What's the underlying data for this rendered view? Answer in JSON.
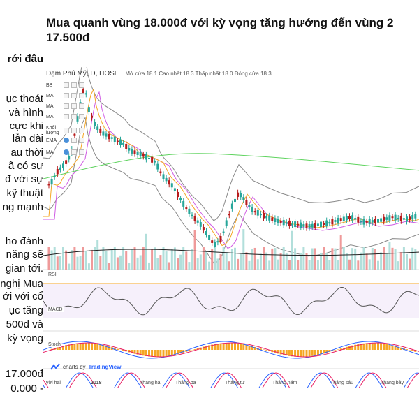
{
  "headline": {
    "line1": "Mua quanh vùng 18.000đ với kỳ vọng tăng hướng đến vùng 2",
    "line2": "17.500đ"
  },
  "side_text": [
    {
      "text": "rới đâu",
      "bold": true
    },
    {
      "text": "ục thoát"
    },
    {
      "text": "và hình"
    },
    {
      "text": "cực khi"
    },
    {
      "text": "lẫn dài"
    },
    {
      "text": "au thời"
    },
    {
      "text": "ã có sự"
    },
    {
      "text": "đ với sự"
    },
    {
      "text": "kỹ thuật"
    },
    {
      "text": "ng mạnh"
    },
    {
      "text": "ho đánh"
    },
    {
      "text": "năng sẽ"
    },
    {
      "text": "gian tới."
    },
    {
      "text": "nghị Mua"
    },
    {
      "text": "ới với cổ"
    },
    {
      "text": "ục tăng"
    },
    {
      "text": "500đ và"
    },
    {
      "text": "kỳ vọng"
    },
    {
      "text": "17.000đ"
    },
    {
      "text": "0.000 -"
    }
  ],
  "chart": {
    "symbol": "Đạm Phú Mỹ, D, HOSE",
    "ohlc_text": "Mở cửa 18.1  Cao nhất 18.3  Thấp nhất 18.0  Đóng cửa 18.3",
    "indicators": [
      "BB",
      "MA",
      "MA",
      "MA",
      "Khối lượng",
      "EMA",
      "MA"
    ],
    "panels": [
      "RSI",
      "MACD",
      "Stoch"
    ],
    "tv_brand": "TradingView",
    "tv_prefix": "charts by",
    "x_labels": [
      "vời hai",
      "2018",
      "Tháng hai",
      "Tháng ba",
      "Tháng tư",
      "Tháng năm",
      "Tháng sáu",
      "Tháng bảy"
    ],
    "colors": {
      "up": "#26a69a",
      "down": "#b71c1c",
      "bb": "#888888",
      "ma_orange": "#f5a623",
      "ma_purple": "#d05ce3",
      "ma_green": "#5fd35f"
    }
  }
}
